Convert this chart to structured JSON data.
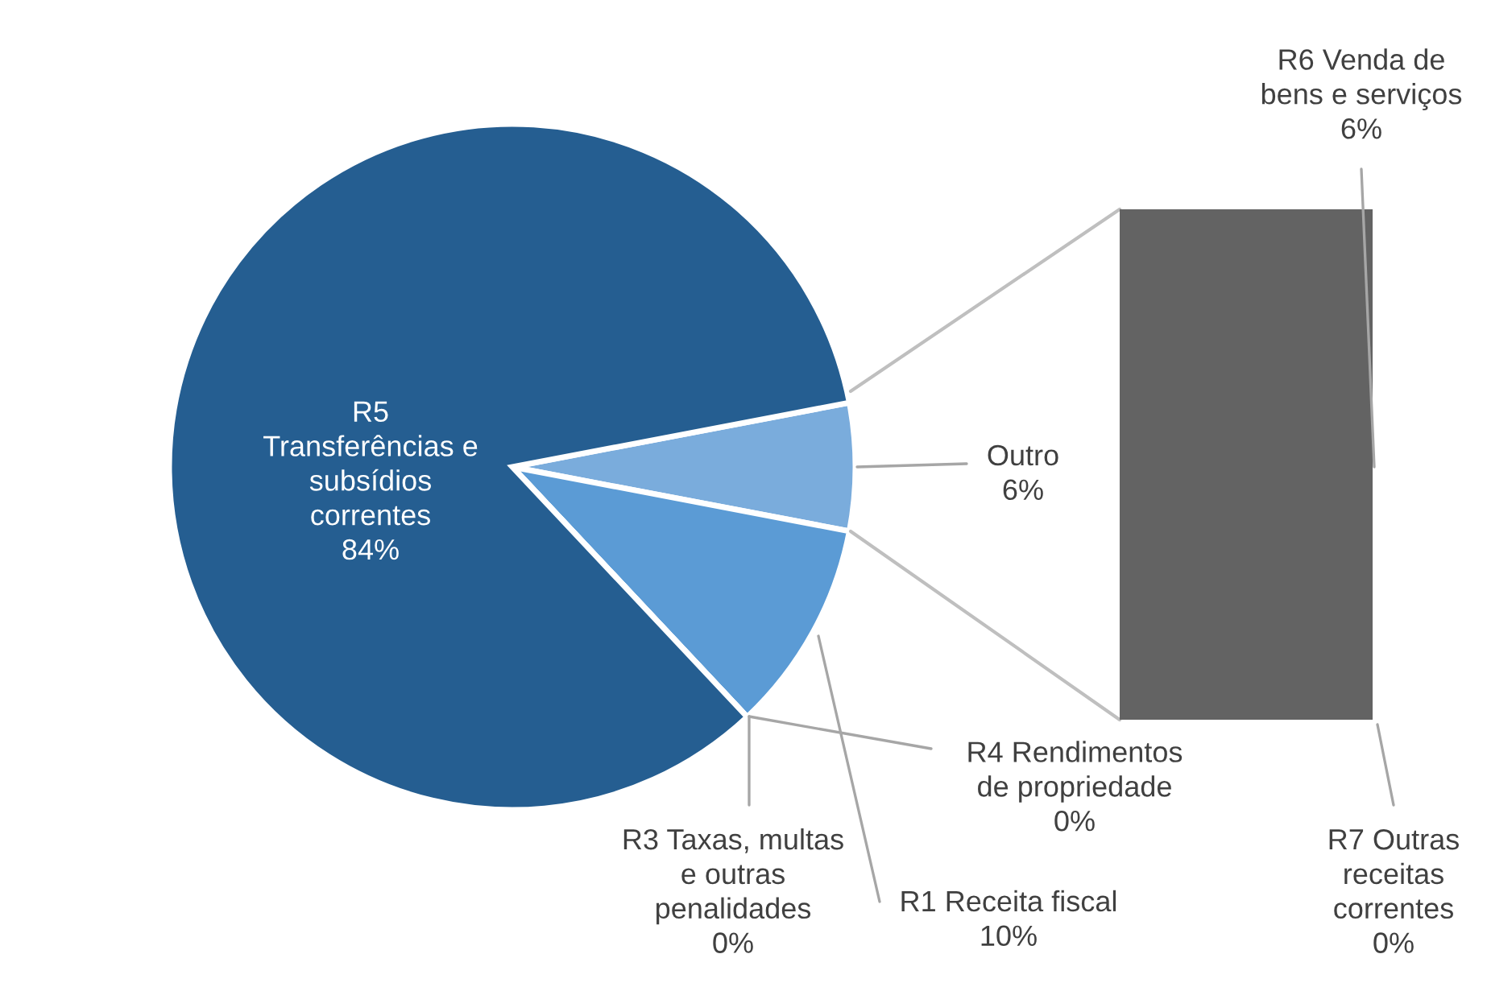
{
  "chart_data": [
    {
      "type": "pie",
      "categories": [
        "Outro",
        "R1 Receita fiscal",
        "R3 Taxas, multas\ne outras\npenalidades",
        "R4 Rendimentos\nde propriedade",
        "R5\nTransferências e\nsubsídios\ncorrentes"
      ],
      "values": [
        6,
        10,
        0,
        0,
        84
      ],
      "value_labels": [
        "6%",
        "10%",
        "0%",
        "0%",
        "84%"
      ],
      "colors": [
        "#7aacdc",
        "#5b9bd5",
        "#4a86c5",
        "#3a74b0",
        "#255e91"
      ]
    },
    {
      "type": "other",
      "categories": [
        null
      ],
      "series": [
        {
          "name": "R7 Outras\nreceitas\ncorrentes",
          "color": "#636363",
          "values": [
            0
          ],
          "value_labels": [
            "0%"
          ]
        },
        {
          "name": "R6 Venda de\nbens e serviços",
          "color": "#636363",
          "values": [
            6
          ],
          "value_labels": [
            "6%"
          ]
        }
      ]
    }
  ]
}
